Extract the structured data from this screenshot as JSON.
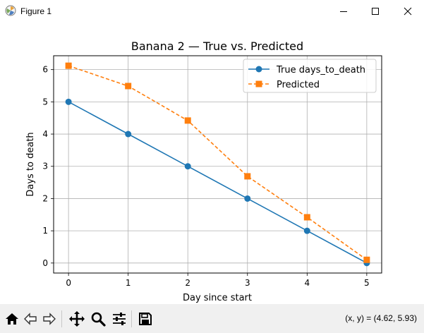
{
  "window": {
    "title": "Figure 1",
    "icons": {
      "app": "matplotlib-figure-icon",
      "minimize": "minimize-icon",
      "maximize": "maximize-icon",
      "close": "close-icon"
    }
  },
  "toolbar": {
    "buttons": [
      {
        "name": "home-icon",
        "label": "Home"
      },
      {
        "name": "back-arrow-icon",
        "label": "Back"
      },
      {
        "name": "forward-arrow-icon",
        "label": "Forward"
      },
      {
        "name": "pan-icon",
        "label": "Pan"
      },
      {
        "name": "zoom-icon",
        "label": "Zoom"
      },
      {
        "name": "configure-subplots-icon",
        "label": "Configure subplots"
      },
      {
        "name": "save-icon",
        "label": "Save"
      }
    ],
    "coordinates": "(x, y) = (4.62, 5.93)"
  },
  "chart_data": {
    "type": "line",
    "title": "Banana 2 — True vs. Predicted",
    "xlabel": "Day since start",
    "ylabel": "Days to death",
    "x": [
      0,
      1,
      2,
      3,
      4,
      5
    ],
    "xticks": [
      "0",
      "1",
      "2",
      "3",
      "4",
      "5"
    ],
    "yticks": [
      "0",
      "1",
      "2",
      "3",
      "4",
      "5",
      "6"
    ],
    "xlim": [
      -0.25,
      5.25
    ],
    "ylim": [
      -0.31,
      6.43
    ],
    "grid": true,
    "legend_position": "top-right",
    "series": [
      {
        "name": "True days_to_death",
        "values": [
          5,
          4,
          3,
          2,
          1,
          0
        ],
        "color": "#1f77b4",
        "marker": "circle",
        "linestyle": "solid"
      },
      {
        "name": "Predicted",
        "values": [
          6.12,
          5.49,
          4.42,
          2.69,
          1.42,
          0.1
        ],
        "color": "#ff7f0e",
        "marker": "square",
        "linestyle": "dashed"
      }
    ]
  }
}
